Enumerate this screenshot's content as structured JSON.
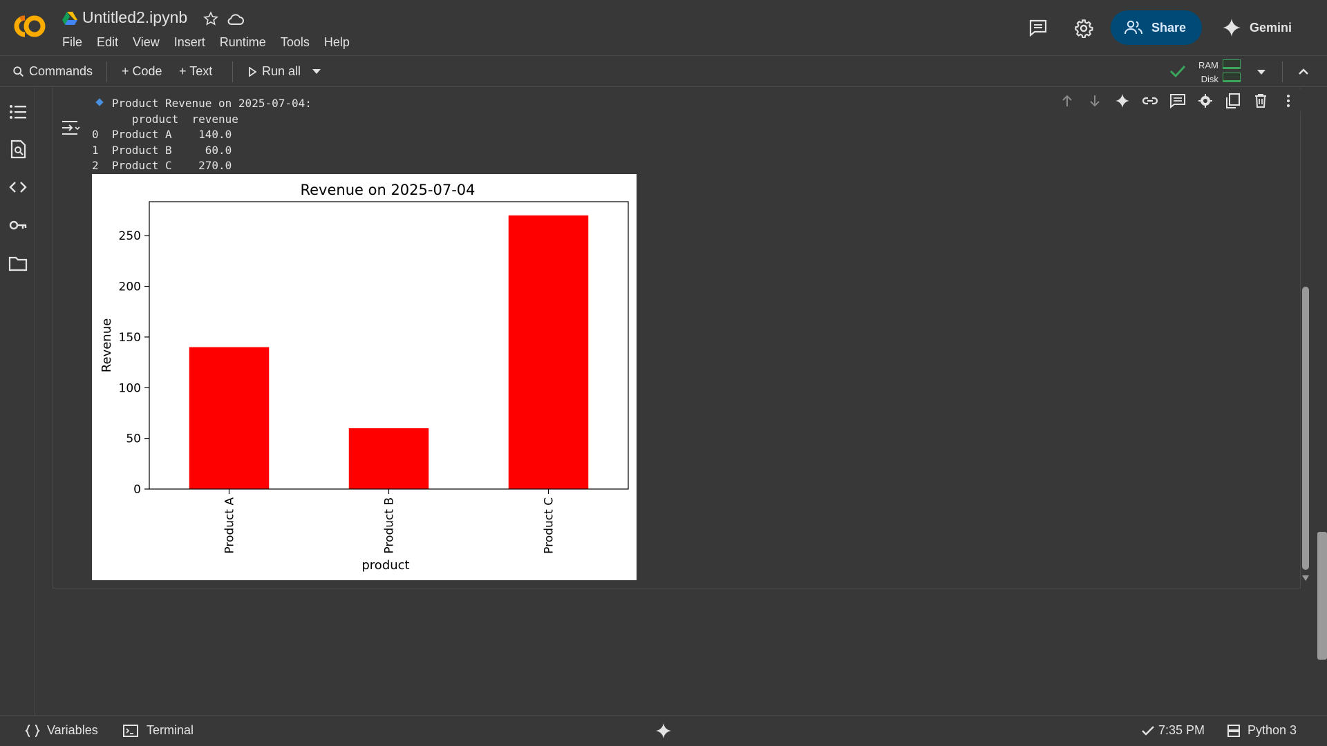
{
  "app": {
    "doc_title": "Untitled2.ipynb",
    "menu": [
      "File",
      "Edit",
      "View",
      "Insert",
      "Runtime",
      "Tools",
      "Help"
    ],
    "share_label": "Share",
    "gemini_label": "Gemini"
  },
  "toolbar": {
    "commands_label": "Commands",
    "code_label": "+ Code",
    "text_label": "+ Text",
    "run_all_label": "Run all",
    "ram_label": "RAM",
    "disk_label": "Disk"
  },
  "output": {
    "lines": [
      "   Product Revenue on 2025-07-04:",
      "      product  revenue",
      "0  Product A    140.0",
      "1  Product B     60.0",
      "2  Product C    270.0"
    ]
  },
  "chart_data": {
    "type": "bar",
    "title": "Revenue on 2025-07-04",
    "xlabel": "product",
    "ylabel": "Revenue",
    "categories": [
      "Product A",
      "Product B",
      "Product C"
    ],
    "values": [
      140.0,
      60.0,
      270.0
    ],
    "ylim": [
      0,
      283.5
    ],
    "yticks": [
      0,
      50,
      100,
      150,
      200,
      250
    ],
    "bar_color": "#ff0000",
    "grid": false,
    "legend": "none"
  },
  "statusbar": {
    "variables_label": "Variables",
    "terminal_label": "Terminal",
    "time_label": "7:35 PM",
    "runtime_label": "Python 3"
  },
  "colors": {
    "background": "#383838",
    "share_bg": "#004a77",
    "accent_green": "#3ba55c",
    "bullet_blue": "#4a90e2"
  }
}
